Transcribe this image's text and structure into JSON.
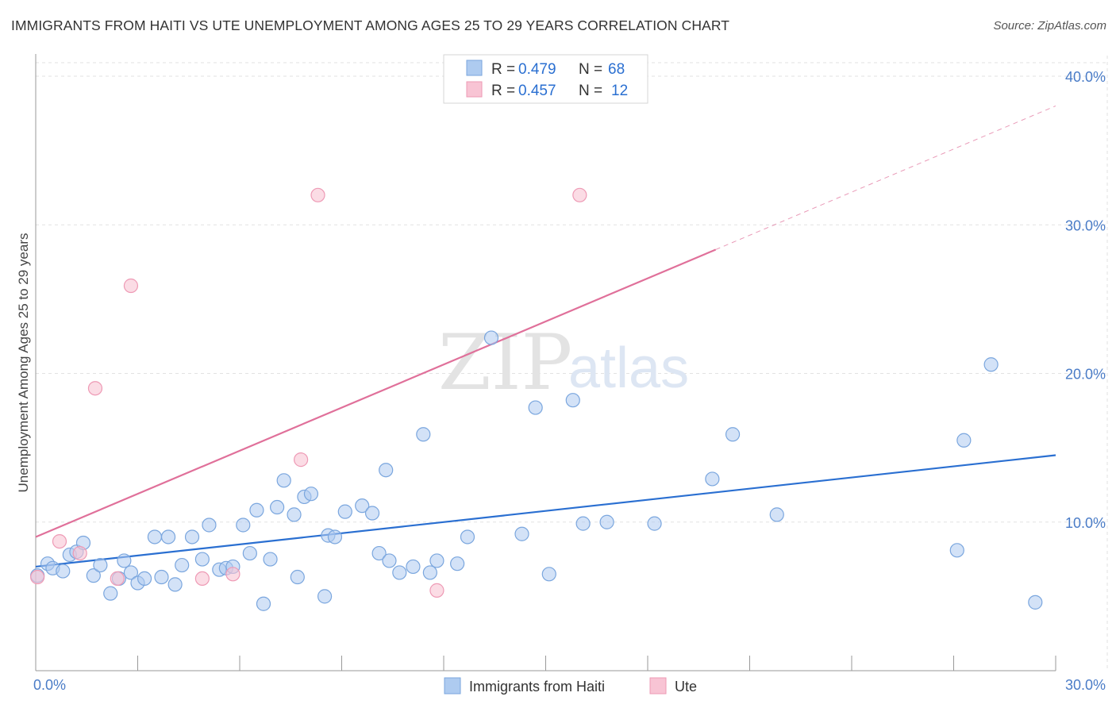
{
  "title": "IMMIGRANTS FROM HAITI VS UTE UNEMPLOYMENT AMONG AGES 25 TO 29 YEARS CORRELATION CHART",
  "source": "Source: ZipAtlas.com",
  "watermark": {
    "zip": "ZIP",
    "atlas": "atlas"
  },
  "colors": {
    "haiti_fill": "#aecbf0",
    "haiti_stroke": "#7aa6de",
    "haiti_line": "#2a6fd1",
    "ute_fill": "#f8c4d4",
    "ute_stroke": "#ee9ab5",
    "ute_line": "#e0709a",
    "grid": "#e2e2e2",
    "axis_text": "#4a7cc7"
  },
  "legend": {
    "rows": [
      {
        "r_label": "R =",
        "r_value": "0.479",
        "n_label": "N =",
        "n_value": "68"
      },
      {
        "r_label": "R =",
        "r_value": "0.457",
        "n_label": "N =",
        "n_value": "12"
      }
    ]
  },
  "chart_data": {
    "type": "scatter",
    "ylabel": "Unemployment Among Ages 25 to 29 years",
    "xlim": [
      0,
      30
    ],
    "ylim": [
      0,
      40
    ],
    "x_tick_labels": [
      "0.0%",
      "30.0%"
    ],
    "y_ticks": [
      10,
      20,
      30,
      40
    ],
    "y_tick_labels": [
      "10.0%",
      "20.0%",
      "30.0%",
      "40.0%"
    ],
    "grid": true,
    "legend_position": "top-center",
    "series": [
      {
        "name": "Immigrants from Haiti",
        "points": [
          [
            0.05,
            6.4
          ],
          [
            0.35,
            7.2
          ],
          [
            0.5,
            6.9
          ],
          [
            0.8,
            6.7
          ],
          [
            1.0,
            7.8
          ],
          [
            1.2,
            8.0
          ],
          [
            1.4,
            8.6
          ],
          [
            1.7,
            6.4
          ],
          [
            1.9,
            7.1
          ],
          [
            2.2,
            5.2
          ],
          [
            2.45,
            6.2
          ],
          [
            2.6,
            7.4
          ],
          [
            2.8,
            6.6
          ],
          [
            3.0,
            5.9
          ],
          [
            3.2,
            6.2
          ],
          [
            3.5,
            9.0
          ],
          [
            3.7,
            6.3
          ],
          [
            3.9,
            9.0
          ],
          [
            4.1,
            5.8
          ],
          [
            4.3,
            7.1
          ],
          [
            4.6,
            9.0
          ],
          [
            4.9,
            7.5
          ],
          [
            5.1,
            9.8
          ],
          [
            5.4,
            6.8
          ],
          [
            5.6,
            6.9
          ],
          [
            5.8,
            7.0
          ],
          [
            6.1,
            9.8
          ],
          [
            6.3,
            7.9
          ],
          [
            6.5,
            10.8
          ],
          [
            6.7,
            4.5
          ],
          [
            6.9,
            7.5
          ],
          [
            7.1,
            11.0
          ],
          [
            7.3,
            12.8
          ],
          [
            7.6,
            10.5
          ],
          [
            7.7,
            6.3
          ],
          [
            7.9,
            11.7
          ],
          [
            8.1,
            11.9
          ],
          [
            8.5,
            5.0
          ],
          [
            8.6,
            9.1
          ],
          [
            8.8,
            9.0
          ],
          [
            9.1,
            10.7
          ],
          [
            9.6,
            11.1
          ],
          [
            9.9,
            10.6
          ],
          [
            10.1,
            7.9
          ],
          [
            10.3,
            13.5
          ],
          [
            10.4,
            7.4
          ],
          [
            10.7,
            6.6
          ],
          [
            11.1,
            7.0
          ],
          [
            11.4,
            15.9
          ],
          [
            11.6,
            6.6
          ],
          [
            11.8,
            7.4
          ],
          [
            12.4,
            7.2
          ],
          [
            12.7,
            9.0
          ],
          [
            13.4,
            22.4
          ],
          [
            14.3,
            9.2
          ],
          [
            14.7,
            17.7
          ],
          [
            15.1,
            6.5
          ],
          [
            15.8,
            18.2
          ],
          [
            16.1,
            9.9
          ],
          [
            16.8,
            10.0
          ],
          [
            18.2,
            9.9
          ],
          [
            19.9,
            12.9
          ],
          [
            20.5,
            15.9
          ],
          [
            21.8,
            10.5
          ],
          [
            27.1,
            8.1
          ],
          [
            27.3,
            15.5
          ],
          [
            28.1,
            20.6
          ],
          [
            29.4,
            4.6
          ]
        ],
        "trend": {
          "x": [
            0,
            30
          ],
          "y": [
            7.0,
            14.5
          ]
        }
      },
      {
        "name": "Ute",
        "points": [
          [
            0.05,
            6.3
          ],
          [
            0.7,
            8.7
          ],
          [
            1.3,
            7.9
          ],
          [
            1.75,
            19.0
          ],
          [
            2.4,
            6.2
          ],
          [
            2.8,
            25.9
          ],
          [
            4.9,
            6.2
          ],
          [
            5.8,
            6.5
          ],
          [
            7.8,
            14.2
          ],
          [
            8.3,
            32.0
          ],
          [
            11.8,
            5.4
          ],
          [
            16.0,
            32.0
          ]
        ],
        "trend": {
          "x": [
            0,
            30
          ],
          "y": [
            9.0,
            38.0
          ],
          "solid_until_x": 20
        }
      }
    ]
  }
}
